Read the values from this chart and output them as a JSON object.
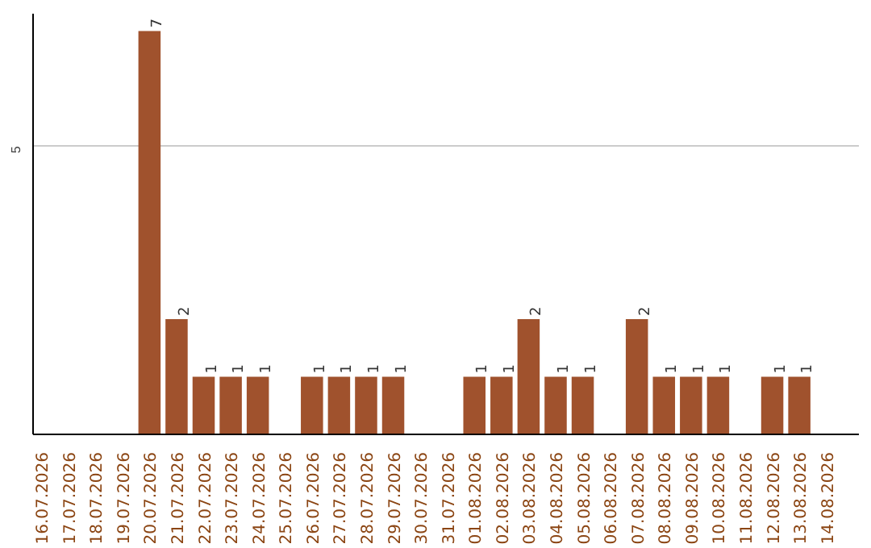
{
  "chart_data": {
    "type": "bar",
    "categories": [
      "16.07.2026",
      "17.07.2026",
      "18.07.2026",
      "19.07.2026",
      "20.07.2026",
      "21.07.2026",
      "22.07.2026",
      "23.07.2026",
      "24.07.2026",
      "25.07.2026",
      "26.07.2026",
      "27.07.2026",
      "28.07.2026",
      "29.07.2026",
      "30.07.2026",
      "31.07.2026",
      "01.08.2026",
      "02.08.2026",
      "03.08.2026",
      "04.08.2026",
      "05.08.2026",
      "06.08.2026",
      "07.08.2026",
      "08.08.2026",
      "09.08.2026",
      "10.08.2026",
      "11.08.2026",
      "12.08.2026",
      "13.08.2026",
      "14.08.2026"
    ],
    "values": [
      0,
      0,
      0,
      0,
      7,
      2,
      1,
      1,
      1,
      0,
      1,
      1,
      1,
      1,
      0,
      0,
      1,
      1,
      2,
      1,
      1,
      0,
      2,
      1,
      1,
      1,
      0,
      1,
      1,
      0
    ],
    "value_labels": [
      null,
      null,
      null,
      null,
      "7",
      "2",
      "1",
      "1",
      "1",
      null,
      "1",
      "1",
      "1",
      "1",
      null,
      null,
      "1",
      "1",
      "2",
      "1",
      "1",
      null,
      "2",
      "1",
      "1",
      "1",
      null,
      "1",
      "1",
      null
    ],
    "color": "#a0522d",
    "ylim": [
      0,
      7.3
    ],
    "yticks": [
      5
    ],
    "grid": "y"
  }
}
